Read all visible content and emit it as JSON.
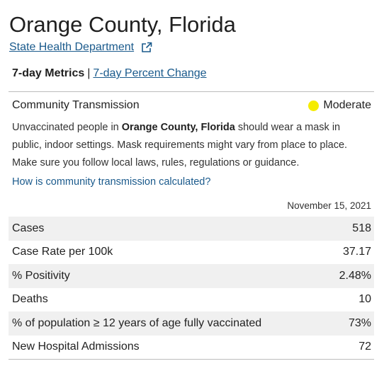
{
  "header": {
    "title": "Orange County, Florida",
    "source_link": "State Health Department"
  },
  "metrics_nav": {
    "active": "7-day Metrics",
    "separator": "|",
    "other": "7-day Percent Change"
  },
  "transmission": {
    "label": "Community Transmission",
    "level": "Moderate",
    "level_color": "#f5ec00",
    "desc_part1": "Unvaccinated people in ",
    "desc_bold": "Orange County, Florida",
    "desc_part2": " should wear a mask in public, indoor settings. Mask requirements might vary from place to place. Make sure you follow local laws, rules, regulations or guidance.",
    "help_link": "How is community transmission calculated?"
  },
  "metrics": {
    "date": "November 15, 2021",
    "rows": [
      {
        "name": "Cases",
        "value": "518"
      },
      {
        "name": "Case Rate per 100k",
        "value": "37.17"
      },
      {
        "name": "% Positivity",
        "value": "2.48%"
      },
      {
        "name": "Deaths",
        "value": "10"
      },
      {
        "name": "% of population ≥ 12 years of age fully vaccinated",
        "value": "73%"
      },
      {
        "name": "New Hospital Admissions",
        "value": "72"
      }
    ]
  },
  "colors": {
    "link": "#1a5a8c",
    "row_shade": "#f0f0f0"
  },
  "icons": {
    "external": "external-link-icon",
    "level": "level-dot-icon"
  }
}
